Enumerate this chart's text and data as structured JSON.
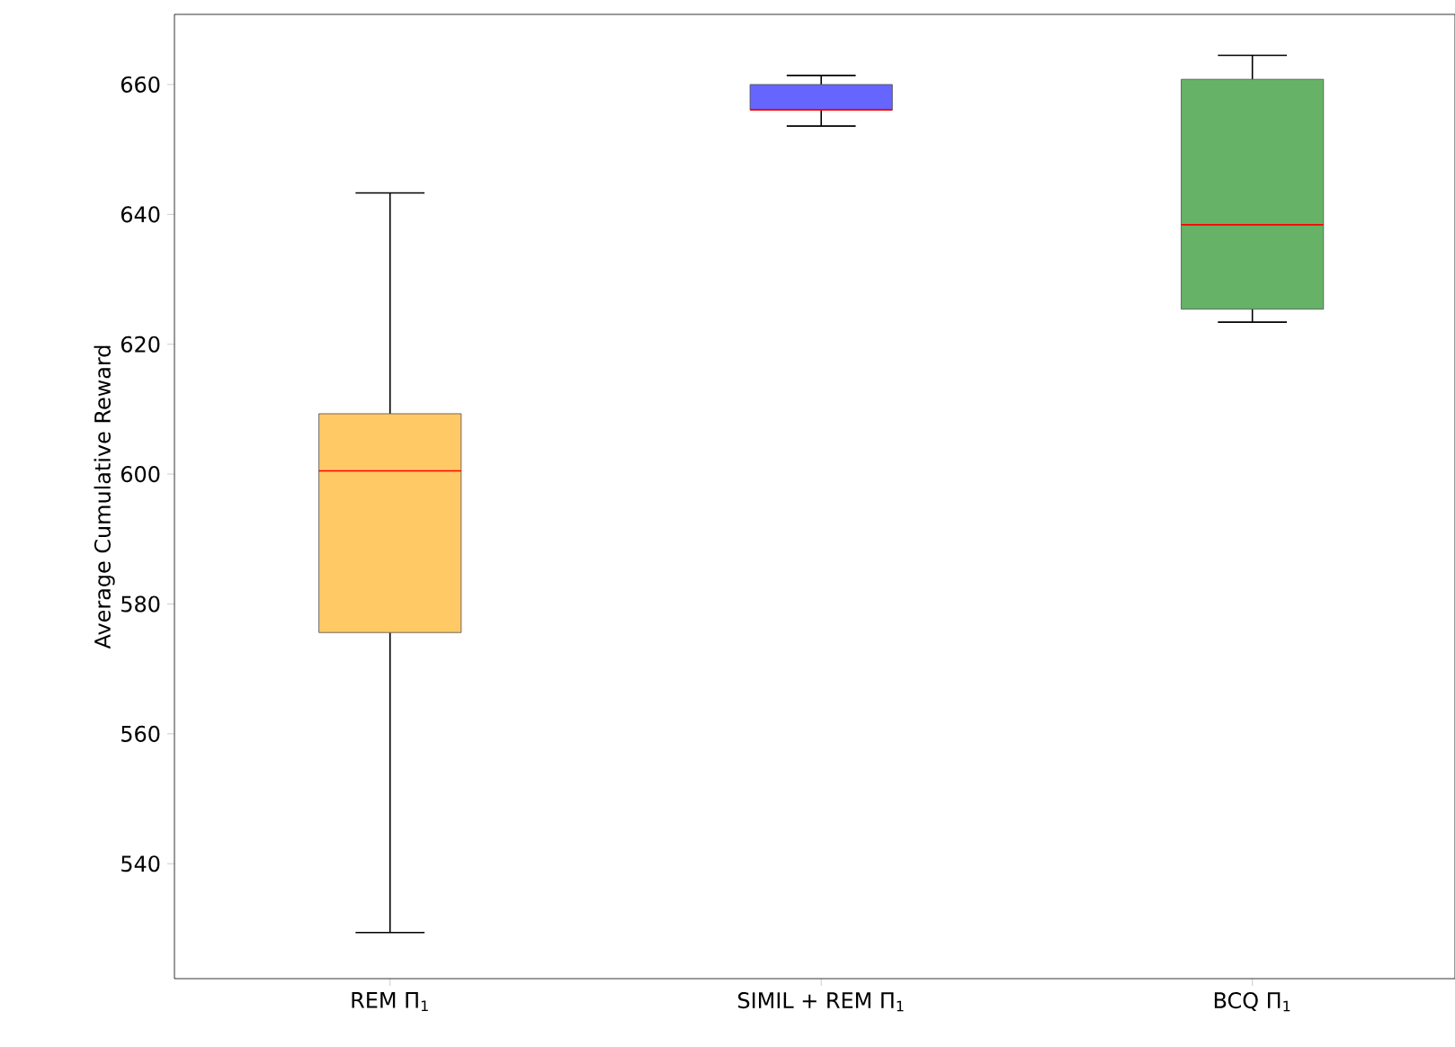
{
  "chart_data": {
    "type": "box",
    "ylabel": "Average Cumulative Reward",
    "categories": [
      "REM Π$_{1}$",
      "SIMIL + REM Π$_{1}$",
      "BCQ Π$_{1}$"
    ],
    "boxes": [
      {
        "low": 529.4,
        "q1": 575.6,
        "median": 600.5,
        "q3": 609.3,
        "high": 643.3
      },
      {
        "low": 653.6,
        "q1": 656.1,
        "median": 656.1,
        "q3": 660.0,
        "high": 661.4
      },
      {
        "low": 623.4,
        "q1": 625.4,
        "median": 638.4,
        "q3": 660.8,
        "high": 664.5
      }
    ],
    "colors": [
      "#ffc966",
      "#6666ff",
      "#66b266"
    ],
    "ylim": [
      522.3,
      670.8
    ],
    "yticks": [
      540,
      560,
      580,
      600,
      620,
      640,
      660
    ],
    "grid": false
  }
}
